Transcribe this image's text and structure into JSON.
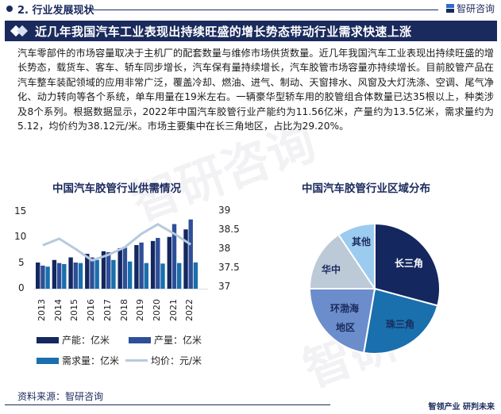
{
  "header": {
    "section_title": "2. 行业发展现状",
    "brand": "智研咨询",
    "banner_title": "近几年我国汽车工业表现出持续旺盛的增长势态带动行业需求快速上涨"
  },
  "body": {
    "paragraph": "汽车零部件的市场容量取决于主机厂的配套数量与维修市场供货数量。近几年我国汽车工业表现出持续旺盛的增长势态，载货车、客车、轿车同步增长，汽车保有量持续增长，汽车胶管市场容量亦持续增长。目前胶管产品在汽车整车装配领域的应用非常广泛，覆盖冷却、燃油、进气、制动、天窗排水、风窗及大灯洗涤、空调、尾气净化、动力转向等各个系统，单车用量在19米左右。一辆豪华型轿车用的胶管组合体数量已达35根以上，种类涉及8个系列。根据数据显示，2022年中国汽车胶管行业产能约为11.56亿米，产量约为13.5亿米，需求量约为5.12，均价约为38.12元/米。市场主要集中在长三角地区，占比为29.20%。"
  },
  "colors": {
    "navy": "#1b2a5c",
    "capacity": "#14275f",
    "production": "#2e4f98",
    "demand": "#1a6fad",
    "price_line": "#b7c9de",
    "pie_changsanjiao": "#14275f",
    "pie_zhusanjiao": "#1a6fad",
    "pie_huanbohai": "#6b8dcc",
    "pie_huazhong": "#bccad8",
    "pie_qita": "#9ccbf0"
  },
  "chart_data": [
    {
      "type": "bar",
      "title": "中国汽车胶管行业供需情况",
      "categories": [
        "2013",
        "2014",
        "2015",
        "2016",
        "2017",
        "2018",
        "2019",
        "2020",
        "2021",
        "2022"
      ],
      "series": [
        {
          "name": "产能：亿米",
          "type": "bar",
          "axis": "left",
          "values": [
            5.1,
            5.6,
            6.1,
            6.8,
            7.3,
            7.9,
            8.5,
            9.3,
            10.1,
            11.56
          ]
        },
        {
          "name": "产量：亿米",
          "type": "bar",
          "axis": "left",
          "values": [
            4.5,
            5.0,
            5.1,
            6.1,
            7.1,
            8.0,
            9.0,
            9.9,
            12.6,
            13.5
          ]
        },
        {
          "name": "需求量：亿米",
          "type": "bar",
          "axis": "left",
          "values": [
            4.3,
            4.8,
            5.0,
            5.6,
            5.6,
            5.3,
            5.0,
            4.9,
            5.0,
            5.12
          ]
        },
        {
          "name": "均价：元/米",
          "type": "line",
          "axis": "right",
          "values": [
            38.1,
            38.27,
            38.0,
            37.7,
            37.85,
            38.05,
            38.4,
            38.65,
            38.4,
            38.12
          ]
        }
      ],
      "yaxis_left": {
        "ticks": [
          "0",
          "5",
          "10",
          "15"
        ],
        "range": [
          0,
          15
        ]
      },
      "yaxis_right": {
        "ticks": [
          "37",
          "37.5",
          "38",
          "38.5",
          "39"
        ],
        "range": [
          37,
          39
        ]
      },
      "xlabel": "",
      "ylabel": "",
      "legend_position": "bottom",
      "grid": false
    },
    {
      "type": "pie",
      "title": "中国汽车胶管行业区域分布",
      "categories": [
        "长三角",
        "珠三角",
        "环渤海地区",
        "华中",
        "其他"
      ],
      "values": [
        29.2,
        23.5,
        22.3,
        15.6,
        9.4
      ],
      "unit": "%"
    }
  ],
  "chart1": {
    "title": "中国汽车胶管行业供需情况",
    "left_ticks": [
      "15",
      "10",
      "5",
      "0"
    ],
    "right_ticks": [
      "39",
      "38.5",
      "38",
      "37.5",
      "37"
    ],
    "legend": {
      "capacity": "产能：亿米",
      "production": "产量：亿米",
      "demand": "需求量：亿米",
      "price": "均价：元/米"
    }
  },
  "chart2": {
    "title": "中国汽车胶管行业区域分布",
    "labels": {
      "changsanjiao": "长三角",
      "zhusanjiao": "珠三角",
      "huanbohai_1": "环渤海",
      "huanbohai_2": "地区",
      "huazhong": "华中",
      "qita": "其他"
    }
  },
  "footer": {
    "source": "资料来源：智研咨询",
    "slogan": "智领产业 研判未来"
  }
}
